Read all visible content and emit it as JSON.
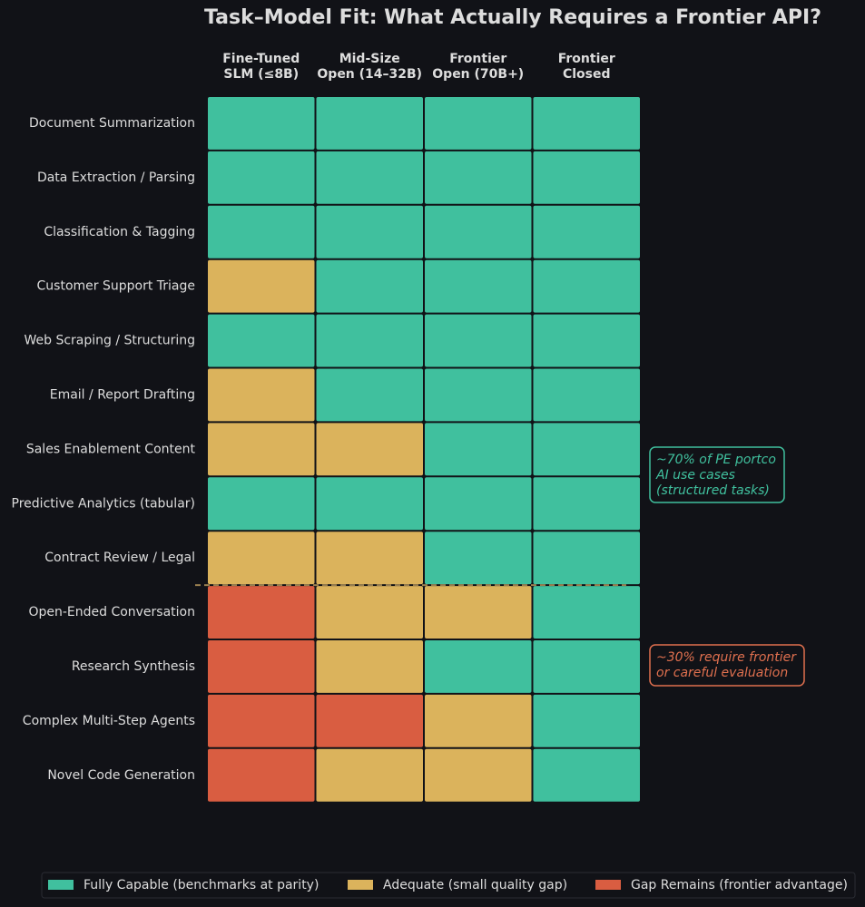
{
  "chart_data": {
    "type": "heatmap",
    "title": "Task–Model Fit: What Actually Requires a Frontier API?",
    "columns": [
      [
        "Fine-Tuned",
        "SLM (≤8B)"
      ],
      [
        "Mid-Size",
        "Open (14–32B)"
      ],
      [
        "Frontier",
        "Open (70B+)"
      ],
      [
        "Frontier",
        "Closed"
      ]
    ],
    "rows": [
      "Document Summarization",
      "Data Extraction / Parsing",
      "Classification & Tagging",
      "Customer Support Triage",
      "Web Scraping / Structuring",
      "Email / Report Drafting",
      "Sales Enablement Content",
      "Predictive Analytics (tabular)",
      "Contract Review / Legal",
      "Open-Ended Conversation",
      "Research Synthesis",
      "Complex Multi-Step Agents",
      "Novel Code Generation"
    ],
    "levels": [
      {
        "name": "Fully Capable (benchmarks at parity)",
        "color": "#40c09e"
      },
      {
        "name": "Adequate (small quality gap)",
        "color": "#dbb35c"
      },
      {
        "name": "Gap Remains (frontier advantage)",
        "color": "#d95d41"
      }
    ],
    "values": [
      [
        0,
        0,
        0,
        0
      ],
      [
        0,
        0,
        0,
        0
      ],
      [
        0,
        0,
        0,
        0
      ],
      [
        1,
        0,
        0,
        0
      ],
      [
        0,
        0,
        0,
        0
      ],
      [
        1,
        0,
        0,
        0
      ],
      [
        1,
        1,
        0,
        0
      ],
      [
        0,
        0,
        0,
        0
      ],
      [
        1,
        1,
        0,
        0
      ],
      [
        2,
        1,
        1,
        0
      ],
      [
        2,
        1,
        0,
        0
      ],
      [
        2,
        2,
        1,
        0
      ],
      [
        2,
        1,
        1,
        0
      ]
    ],
    "annotations": [
      {
        "lines": [
          "~70% of PE portco",
          "AI use cases",
          "(structured tasks)"
        ],
        "color": "#40c09e"
      },
      {
        "lines": [
          "~30% require frontier",
          "or careful evaluation"
        ],
        "color": "#e0704f"
      }
    ]
  }
}
